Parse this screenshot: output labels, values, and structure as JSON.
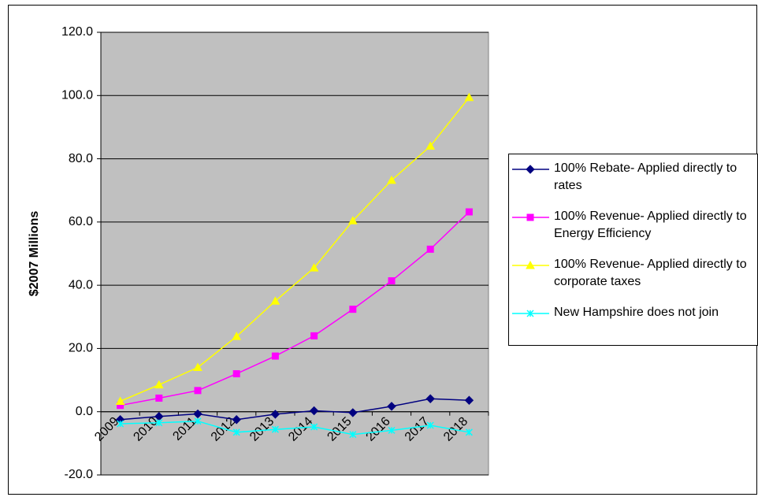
{
  "chart_data": {
    "type": "line",
    "y_label": "$2007 Millions",
    "categories": [
      "2009",
      "2010",
      "2011",
      "2012",
      "2013",
      "2014",
      "2015",
      "2016",
      "2017",
      "2018"
    ],
    "ylim": [
      -20,
      120
    ],
    "yticks": [
      {
        "value": -20,
        "label": "-20.0"
      },
      {
        "value": 0,
        "label": "0.0"
      },
      {
        "value": 20,
        "label": "20.0"
      },
      {
        "value": 40,
        "label": "40.0"
      },
      {
        "value": 60,
        "label": "60.0"
      },
      {
        "value": 80,
        "label": "80.0"
      },
      {
        "value": 100,
        "label": "100.0"
      },
      {
        "value": 120,
        "label": "120.0"
      }
    ],
    "grid": true,
    "legend": "right",
    "series": [
      {
        "name": "100% Rebate- Applied directly to rates",
        "color": "#000080",
        "marker": "diamond",
        "values": [
          -2.5,
          -1.5,
          -0.7,
          -2.5,
          -0.8,
          0.3,
          -0.3,
          1.7,
          4.1,
          3.6
        ]
      },
      {
        "name": "100% Revenue- Applied directly to Energy Efficiency",
        "color": "#ff00ff",
        "marker": "square",
        "values": [
          2.0,
          4.3,
          6.7,
          12.0,
          17.6,
          24.0,
          32.4,
          41.4,
          51.4,
          63.2
        ]
      },
      {
        "name": "100% Revenue- Applied directly to corporate taxes",
        "color": "#ffff00",
        "marker": "triangle",
        "values": [
          3.3,
          8.5,
          14.0,
          23.8,
          35.0,
          45.5,
          60.4,
          73.2,
          84.0,
          99.4
        ]
      },
      {
        "name": "New Hampshire does not join",
        "color": "#00ffff",
        "marker": "x",
        "values": [
          -3.8,
          -3.5,
          -3.0,
          -6.5,
          -5.6,
          -4.8,
          -7.2,
          -5.9,
          -4.3,
          -6.5
        ]
      }
    ]
  }
}
